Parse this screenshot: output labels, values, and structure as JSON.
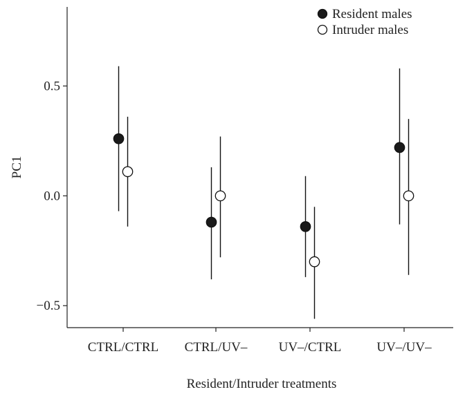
{
  "chart_data": {
    "type": "scatter",
    "title": "",
    "xlabel": "Resident/Intruder treatments",
    "ylabel": "PC1",
    "categories": [
      "CTRL/CTRL",
      "CTRL/UV–",
      "UV–/CTRL",
      "UV–/UV–"
    ],
    "ylim": [
      -0.6,
      0.86
    ],
    "yticks": [
      -0.5,
      0.0,
      0.5
    ],
    "ytick_labels": [
      "−0.5",
      "0.0",
      "0.5"
    ],
    "grid": false,
    "legend_position": "top-right",
    "series": [
      {
        "name": "Resident males",
        "marker": "filled-circle",
        "color": "#1a1a1a",
        "values": [
          0.26,
          -0.12,
          -0.14,
          0.22
        ],
        "lower": [
          -0.07,
          -0.38,
          -0.37,
          -0.13
        ],
        "upper": [
          0.59,
          0.13,
          0.09,
          0.58
        ]
      },
      {
        "name": "Intruder males",
        "marker": "open-circle",
        "color": "#ffffff",
        "values": [
          0.11,
          0.0,
          -0.3,
          0.0
        ],
        "lower": [
          -0.14,
          -0.28,
          -0.56,
          -0.36
        ],
        "upper": [
          0.36,
          0.27,
          -0.05,
          0.35
        ]
      }
    ]
  }
}
